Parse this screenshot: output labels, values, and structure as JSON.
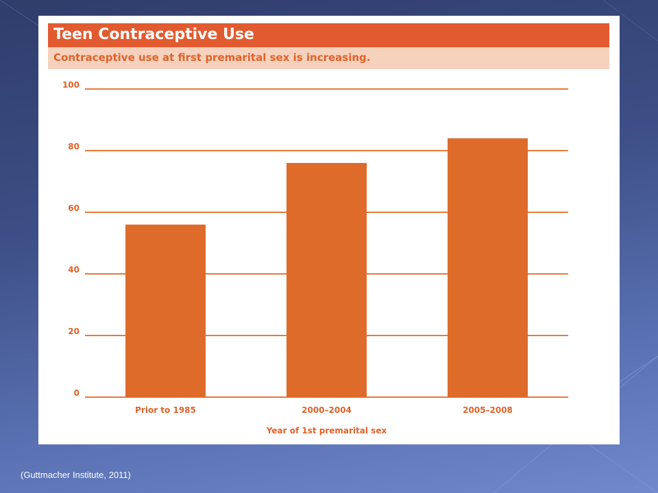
{
  "header": {
    "title": "Teen Contraceptive Use",
    "subtitle": "Contraceptive use at first premarital sex is increasing."
  },
  "footer": {
    "source": "(Guttmacher Institute, 2011)"
  },
  "colors": {
    "bar": "#df6b2b",
    "gridline": "#e47a3c",
    "tick_text": "#e0622a",
    "title_bg": "#e25a30",
    "subtitle_bg": "#f6d1bc"
  },
  "chart_data": {
    "type": "bar",
    "title": "Teen Contraceptive Use",
    "subtitle": "Contraceptive use at first premarital sex is increasing.",
    "categories": [
      "Prior to 1985",
      "2000–2004",
      "2005–2008"
    ],
    "values": [
      56,
      76,
      84
    ],
    "xlabel": "Year of 1st premarital sex",
    "ylabel": "",
    "ylim": [
      0,
      100
    ],
    "yticks": [
      0,
      20,
      40,
      60,
      80,
      100
    ],
    "grid": true,
    "legend": "none"
  }
}
